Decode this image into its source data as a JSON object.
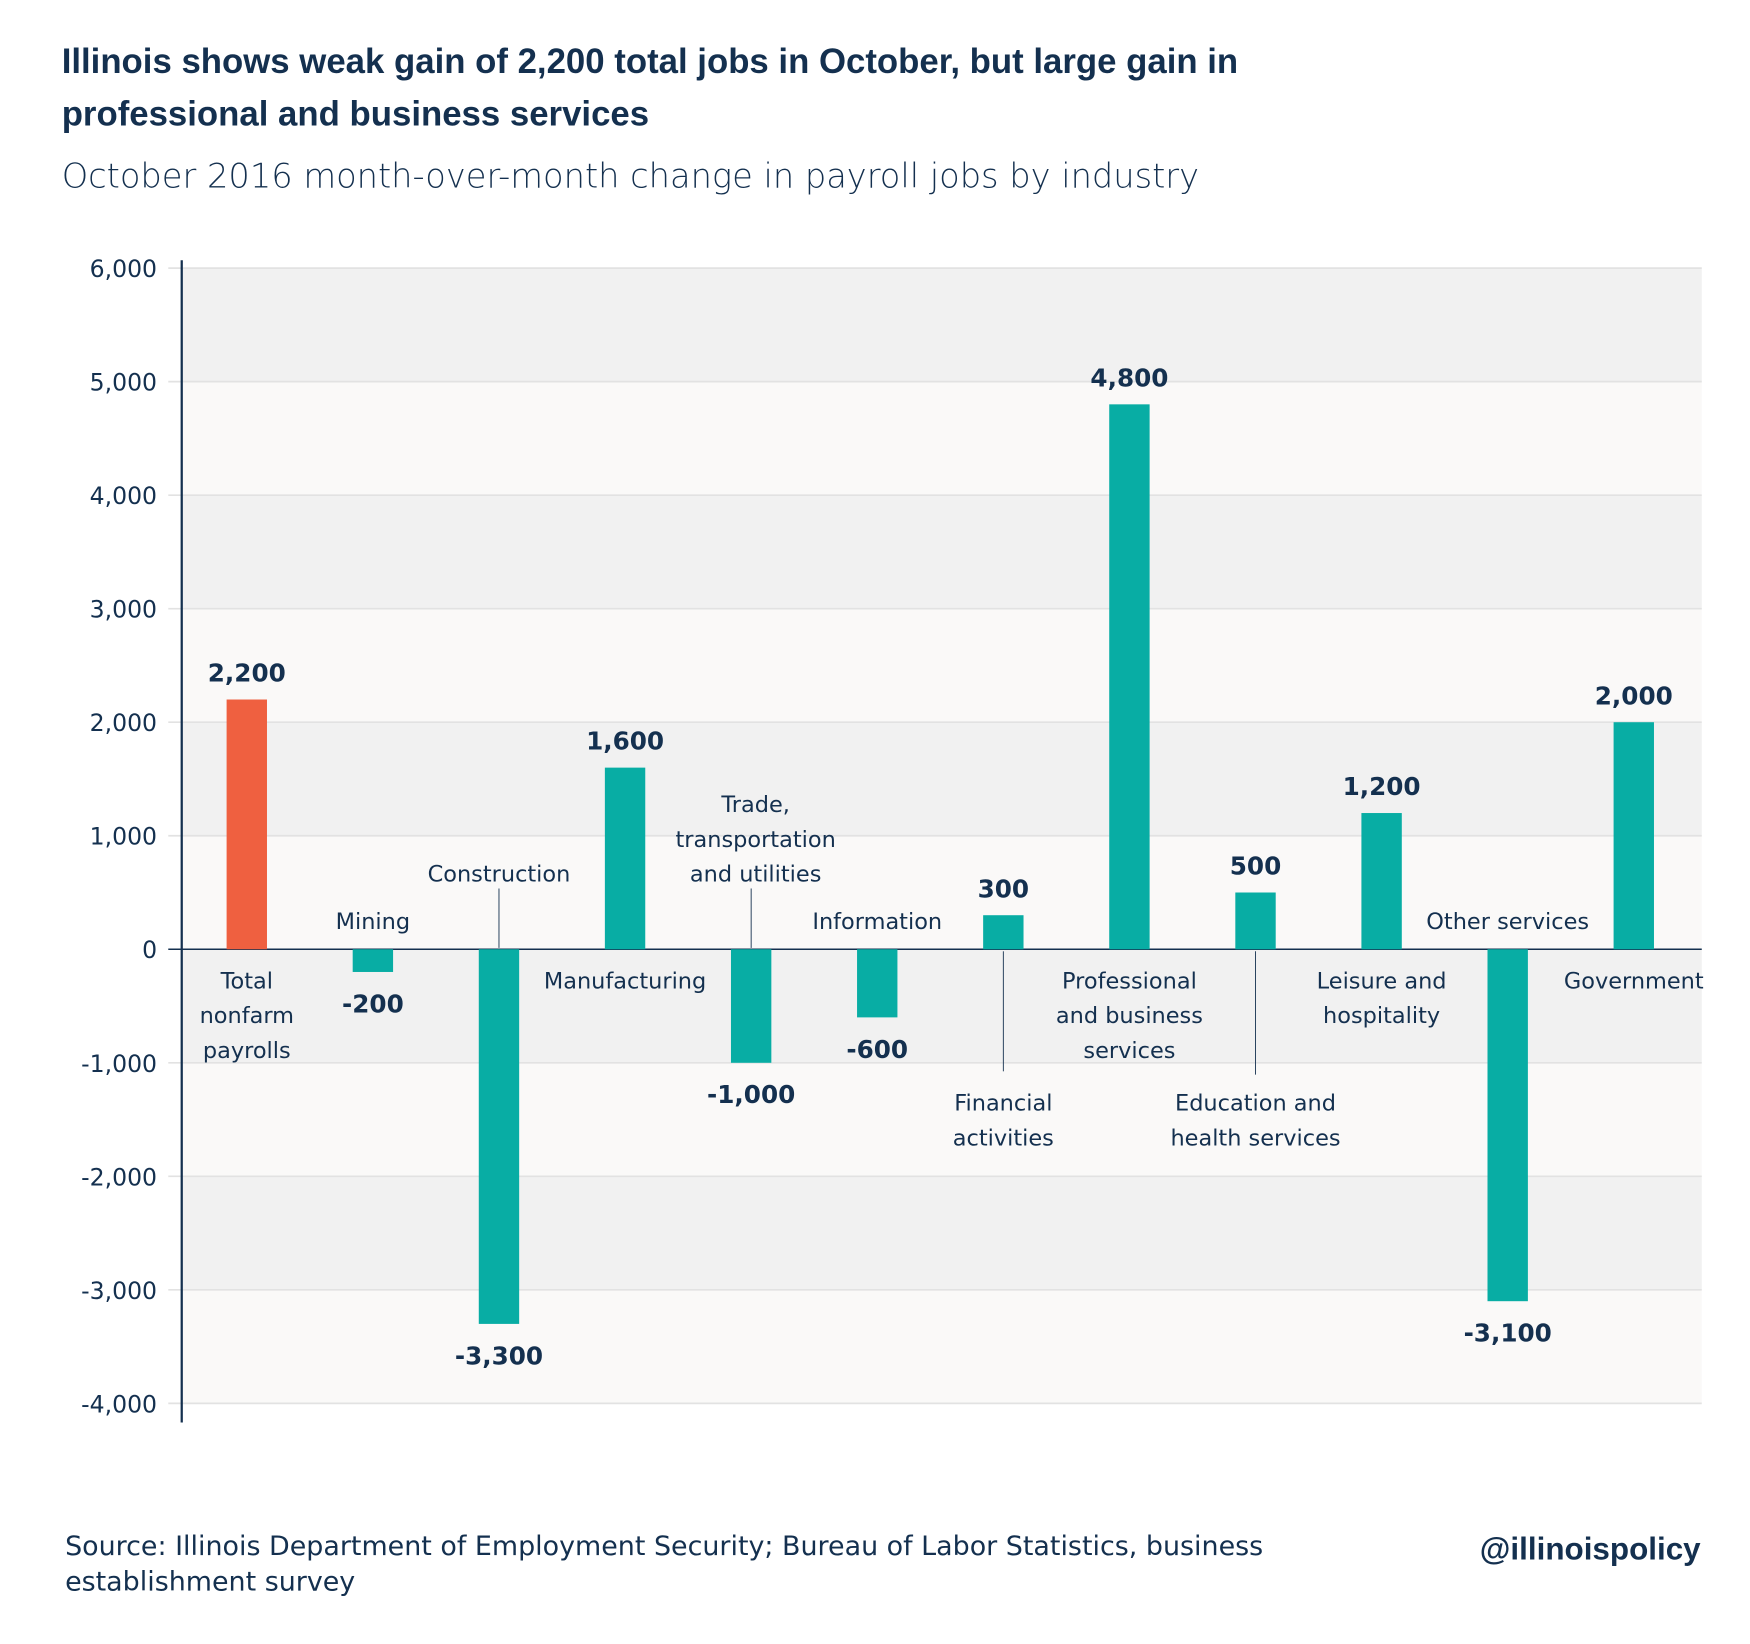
{
  "chart_data": {
    "type": "bar",
    "title": "Illinois shows weak gain of 2,200 total jobs in October, but large gain in professional and business services",
    "title_lines": [
      "Illinois shows weak gain of 2,200 total jobs in October, but large gain in",
      "professional and business services"
    ],
    "subtitle": "October 2016 month-over-month change in payroll jobs by industry",
    "categories": [
      "Total nonfarm payrolls",
      "Mining",
      "Construction",
      "Manufacturing",
      "Trade, transportation and utilities",
      "Information",
      "Financial activities",
      "Professional and business services",
      "Education and health services",
      "Leisure and hospitality",
      "Other services",
      "Government"
    ],
    "category_lines": [
      [
        "Total",
        "nonfarm",
        "payrolls"
      ],
      [
        "Mining"
      ],
      [
        "Construction"
      ],
      [
        "Manufacturing"
      ],
      [
        "Trade,",
        "transportation",
        "and utilities"
      ],
      [
        "Information"
      ],
      [
        "Financial",
        "activities"
      ],
      [
        "Professional",
        "and business",
        "services"
      ],
      [
        "Education and",
        "health services"
      ],
      [
        "Leisure and",
        "hospitality"
      ],
      [
        "Other services"
      ],
      [
        "Government"
      ]
    ],
    "values": [
      2200,
      -200,
      -3300,
      1600,
      -1000,
      -600,
      300,
      4800,
      500,
      1200,
      -3100,
      2000
    ],
    "value_labels": [
      "2,200",
      "-200",
      "-3,300",
      "1,600",
      "-1,000",
      "-600",
      "300",
      "4,800",
      "500",
      "1,200",
      "-3,100",
      "2,000"
    ],
    "ylim": [
      -4000,
      6000
    ],
    "yticks": [
      6000,
      5000,
      4000,
      3000,
      2000,
      1000,
      0,
      -1000,
      -2000,
      -3000,
      -4000
    ],
    "ytick_labels": [
      "6,000",
      "5,000",
      "4,000",
      "3,000",
      "2,000",
      "1,000",
      "0",
      "-1,000",
      "-2,000",
      "-3,000",
      "-4,000"
    ],
    "xlabel": "",
    "ylabel": "",
    "grid": true,
    "colors": {
      "highlight": "#ef6040",
      "bar": "#08ada4",
      "text": "#14304f",
      "band_dark": "#f1f1f1",
      "band_light": "#faf9f8"
    }
  },
  "footer": {
    "source_lines": [
      "Source: Illinois Department of Employment Security; Bureau of Labor Statistics, business",
      "establishment survey"
    ],
    "handle": "@illinoispolicy"
  }
}
